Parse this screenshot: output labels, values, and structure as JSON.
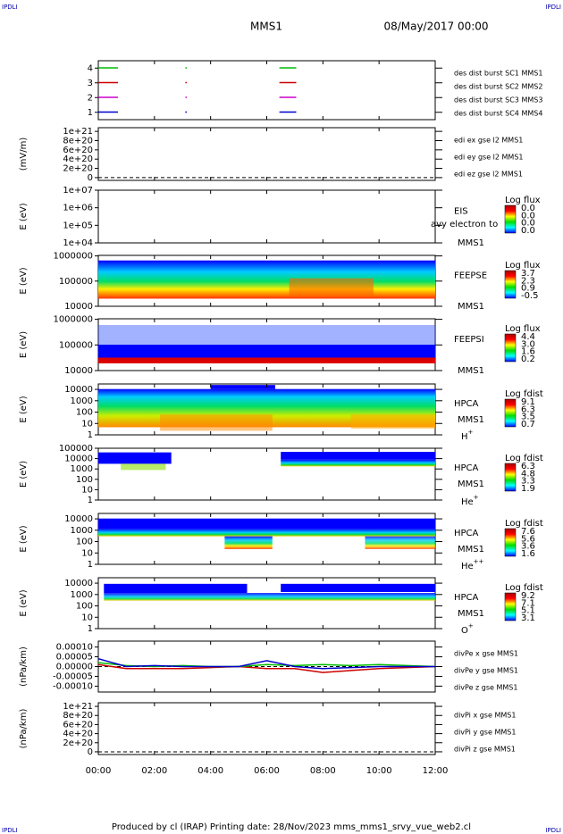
{
  "header": {
    "corner_tl": "IPDLI",
    "corner_tr": "IPDLI",
    "mission": "MMS1",
    "date": "08/May/2017 00:00"
  },
  "footer": {
    "text": "Produced by cl (IRAP)   Printing date: 28/Nov/2023   mms_mms1_srvy_vue_web2.cl",
    "corner_bl": "IPDLI",
    "corner_br": "IPDLI"
  },
  "xaxis": {
    "xlim": [
      0,
      12
    ],
    "xticks": [
      {
        "value": 0,
        "label": "00:00"
      },
      {
        "value": 2,
        "label": "02:00"
      },
      {
        "value": 4,
        "label": "04:00"
      },
      {
        "value": 6,
        "label": "06:00"
      },
      {
        "value": 8,
        "label": "08:00"
      },
      {
        "value": 10,
        "label": "10:00"
      },
      {
        "value": 12,
        "label": "12:00"
      }
    ]
  },
  "chart_data": [
    {
      "type": "availability",
      "ylim": [
        0.5,
        4.5
      ],
      "yticks": [
        1,
        2,
        3,
        4
      ],
      "series": [
        {
          "name": "des dist burst SC1 MMS1",
          "color": "#0000cc",
          "row": 1,
          "intervals": [
            [
              0,
              0.7
            ],
            [
              3.1,
              3.15
            ],
            [
              6.45,
              7.05
            ]
          ]
        },
        {
          "name": "des dist burst SC2 MMS2",
          "color": "#cc00cc",
          "row": 2,
          "intervals": [
            [
              0,
              0.7
            ],
            [
              3.1,
              3.15
            ],
            [
              6.45,
              7.05
            ]
          ]
        },
        {
          "name": "des dist burst SC3 MMS3",
          "color": "#cc0000",
          "row": 3,
          "intervals": [
            [
              0,
              0.7
            ],
            [
              3.1,
              3.15
            ],
            [
              6.45,
              7.05
            ]
          ]
        },
        {
          "name": "des dist burst SC4 MMS4",
          "color": "#00bb00",
          "row": 4,
          "intervals": [
            [
              0,
              0.7
            ],
            [
              3.1,
              3.15
            ],
            [
              6.45,
              7.05
            ]
          ]
        }
      ]
    },
    {
      "type": "line",
      "ylabel": "(mV/m)",
      "ylim": [
        -6e+19,
        1.08e+21
      ],
      "yticks": [
        {
          "value": 0,
          "label": "0"
        },
        {
          "value": 2e+20,
          "label": "2e+20"
        },
        {
          "value": 4e+20,
          "label": "4e+20"
        },
        {
          "value": 6e+20,
          "label": "6e+20"
        },
        {
          "value": 8e+20,
          "label": "8e+20"
        },
        {
          "value": 1e+21,
          "label": "1e+21"
        }
      ],
      "series": [
        {
          "name": "edi ex gse l2 MMS1",
          "color": "#cc0000"
        },
        {
          "name": "edi ey gse l2 MMS1",
          "color": "#00bb00"
        },
        {
          "name": "edi ez gse l2 MMS1",
          "color": "#0000cc"
        }
      ]
    },
    {
      "type": "spectrogram",
      "ylabel": "E (eV)",
      "log": true,
      "ylim": [
        10000,
        10000000
      ],
      "yticks": [
        {
          "value": 10000,
          "label": "1e+04"
        },
        {
          "value": 100000,
          "label": "1e+05"
        },
        {
          "value": 1000000,
          "label": "1e+06"
        },
        {
          "value": 10000000,
          "label": "1e+07"
        }
      ],
      "labels": [
        "EIS",
        "MMS1"
      ],
      "note": "avy electron to",
      "colorbar": {
        "title": "Log flux",
        "labels": [
          "0.0",
          "0.0",
          "0.0",
          "0.0"
        ]
      }
    },
    {
      "type": "spectrogram",
      "ylabel": "E (eV)",
      "log": true,
      "ylim": [
        10000,
        1050000
      ],
      "yticks": [
        10000,
        100000,
        1000000
      ],
      "labels": [
        "FEEPSE",
        "MMS1"
      ],
      "colorbar": {
        "title": "Log flux",
        "labels": [
          "3.7",
          "2.3",
          "0.9",
          "-0.5"
        ]
      }
    },
    {
      "type": "spectrogram",
      "ylabel": "E (eV)",
      "log": true,
      "ylim": [
        10000,
        1050000
      ],
      "yticks": [
        10000,
        100000,
        1000000
      ],
      "labels": [
        "FEEPSI",
        "MMS1"
      ],
      "colorbar": {
        "title": "Log flux",
        "labels": [
          "4.4",
          "3.0",
          "1.6",
          "0.2"
        ]
      }
    },
    {
      "type": "spectrogram",
      "ylabel": "E (eV)",
      "log": true,
      "ylim": [
        1,
        30000
      ],
      "yticks": [
        1,
        10,
        100,
        1000,
        10000
      ],
      "labels": [
        "HPCA",
        "MMS1"
      ],
      "species": "H",
      "charge": "+",
      "colorbar": {
        "title": "Log fdist",
        "labels": [
          "9.1",
          "6.3",
          "3.5",
          "0.7"
        ]
      }
    },
    {
      "type": "spectrogram",
      "ylabel": "E (eV)",
      "log": true,
      "ylim": [
        1,
        100000
      ],
      "yticks": [
        1,
        10,
        100,
        1000,
        10000,
        100000
      ],
      "labels": [
        "HPCA",
        "MMS1"
      ],
      "species": "He",
      "charge": "+",
      "colorbar": {
        "title": "Log fdist",
        "labels": [
          "6.3",
          "4.8",
          "3.3",
          "1.9"
        ]
      }
    },
    {
      "type": "spectrogram",
      "ylabel": "E (eV)",
      "log": true,
      "ylim": [
        1,
        30000
      ],
      "yticks": [
        1,
        10,
        100,
        1000,
        10000
      ],
      "labels": [
        "HPCA",
        "MMS1"
      ],
      "species": "He",
      "charge": "++",
      "colorbar": {
        "title": "Log fdist",
        "labels": [
          "7.6",
          "5.6",
          "3.6",
          "1.6"
        ]
      }
    },
    {
      "type": "spectrogram",
      "ylabel": "E (eV)",
      "log": true,
      "ylim": [
        1,
        30000
      ],
      "yticks": [
        1,
        10,
        100,
        1000,
        10000
      ],
      "labels": [
        "HPCA",
        "MMS1"
      ],
      "species": "O",
      "charge": "+",
      "colorbar": {
        "title": "Log fdist",
        "labels": [
          "9.2",
          "7.1",
          "5.1",
          "3.1"
        ]
      }
    },
    {
      "type": "line",
      "ylabel": "(nPa/km)",
      "ylim": [
        -0.00013,
        0.00013
      ],
      "yticks": [
        {
          "value": -0.0001,
          "label": "-0.00010"
        },
        {
          "value": -5e-05,
          "label": "-0.00005"
        },
        {
          "value": 0,
          "label": "0.00000"
        },
        {
          "value": 5e-05,
          "label": "0.00005"
        },
        {
          "value": 0.0001,
          "label": "0.00010"
        }
      ],
      "x": [
        0,
        1,
        2,
        3,
        4,
        5,
        6,
        7,
        8,
        9,
        10,
        11,
        12
      ],
      "series": [
        {
          "name": "divPe x gse MMS1",
          "color": "#cc0000",
          "values": [
            1e-05,
            -1e-05,
            -1e-05,
            -1e-05,
            -5e-06,
            0,
            -1e-05,
            -1e-05,
            -3e-05,
            -2e-05,
            -1e-05,
            -5e-06,
            0
          ]
        },
        {
          "name": "divPe y gse MMS1",
          "color": "#00bb00",
          "values": [
            2e-05,
            5e-06,
            0,
            5e-06,
            0,
            0,
            1e-05,
            5e-06,
            1e-05,
            5e-06,
            1e-05,
            5e-06,
            0
          ]
        },
        {
          "name": "divPe z gse MMS1",
          "color": "#0000cc",
          "values": [
            4e-05,
            0,
            5e-06,
            0,
            0,
            0,
            3e-05,
            0,
            -1e-05,
            -5e-06,
            0,
            0,
            0
          ]
        }
      ]
    },
    {
      "type": "line",
      "ylabel": "(nPa/km)",
      "ylim": [
        -6e+19,
        1.08e+21
      ],
      "yticks": [
        {
          "value": 0,
          "label": "0"
        },
        {
          "value": 2e+20,
          "label": "2e+20"
        },
        {
          "value": 4e+20,
          "label": "4e+20"
        },
        {
          "value": 6e+20,
          "label": "6e+20"
        },
        {
          "value": 8e+20,
          "label": "8e+20"
        },
        {
          "value": 1e+21,
          "label": "1e+21"
        }
      ],
      "series": [
        {
          "name": "divPi x gse MMS1",
          "color": "#cc0000"
        },
        {
          "name": "divPi y gse MMS1",
          "color": "#00bb00"
        },
        {
          "name": "divPi z gse MMS1",
          "color": "#0000cc"
        }
      ]
    }
  ]
}
